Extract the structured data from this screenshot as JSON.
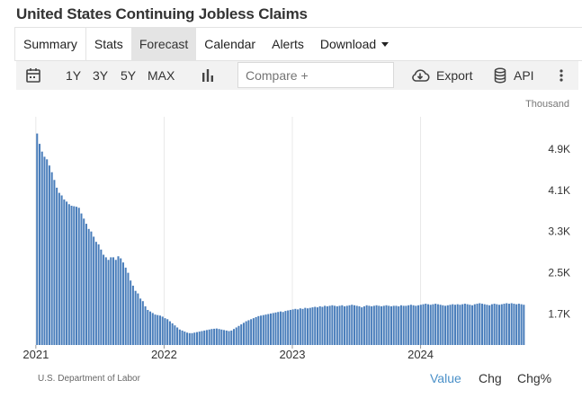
{
  "page": {
    "title": "United States Continuing Jobless Claims"
  },
  "tabs": [
    {
      "label": "Summary"
    },
    {
      "label": "Stats"
    },
    {
      "label": "Forecast"
    },
    {
      "label": "Calendar"
    },
    {
      "label": "Alerts"
    },
    {
      "label": "Download"
    }
  ],
  "toolbar": {
    "ranges": [
      "1Y",
      "3Y",
      "5Y",
      "MAX"
    ],
    "compare_placeholder": "Compare +",
    "export_label": "Export",
    "api_label": "API",
    "icons": [
      "calendar-icon",
      "bar-chart-icon",
      "cloud-download-icon",
      "database-icon",
      "more-vertical-icon"
    ]
  },
  "colors": {
    "bar": "#4a7ebb",
    "accent": "#4a90c8",
    "grid": "#e8e8e8"
  },
  "chart_data": {
    "type": "bar",
    "unit_label": "Thousand",
    "y_axis": "right",
    "ylim": [
      1100,
      5350
    ],
    "yticks": [
      1700,
      2500,
      3300,
      4100,
      4900
    ],
    "ytick_labels": [
      "1.7K",
      "2.5K",
      "3.3K",
      "4.1K",
      "4.9K"
    ],
    "xlim": [
      2020.98,
      2024.95
    ],
    "xticks": [
      2021,
      2022,
      2023,
      2024
    ],
    "xtick_labels": [
      "2021",
      "2022",
      "2023",
      "2024"
    ],
    "grid": "vertical",
    "start": "2021-01-02",
    "interval": "weekly",
    "values": [
      5200,
      5000,
      4850,
      4750,
      4700,
      4580,
      4450,
      4300,
      4150,
      4050,
      4000,
      3920,
      3880,
      3830,
      3800,
      3790,
      3780,
      3760,
      3650,
      3550,
      3450,
      3350,
      3300,
      3200,
      3100,
      3050,
      2950,
      2850,
      2800,
      2750,
      2800,
      2800,
      2750,
      2820,
      2780,
      2700,
      2600,
      2500,
      2350,
      2250,
      2150,
      2100,
      2000,
      1950,
      1850,
      1780,
      1750,
      1720,
      1690,
      1680,
      1670,
      1650,
      1620,
      1600,
      1560,
      1520,
      1480,
      1440,
      1400,
      1380,
      1360,
      1340,
      1330,
      1330,
      1340,
      1350,
      1360,
      1370,
      1380,
      1390,
      1400,
      1410,
      1415,
      1420,
      1410,
      1400,
      1390,
      1380,
      1370,
      1380,
      1410,
      1440,
      1470,
      1500,
      1530,
      1560,
      1580,
      1600,
      1620,
      1640,
      1660,
      1670,
      1680,
      1690,
      1700,
      1710,
      1720,
      1730,
      1740,
      1750,
      1740,
      1760,
      1770,
      1780,
      1790,
      1800,
      1790,
      1810,
      1800,
      1820,
      1810,
      1820,
      1830,
      1840,
      1830,
      1850,
      1840,
      1860,
      1850,
      1860,
      1870,
      1860,
      1850,
      1860,
      1870,
      1850,
      1860,
      1870,
      1880,
      1870,
      1860,
      1850,
      1830,
      1850,
      1870,
      1860,
      1850,
      1860,
      1870,
      1860,
      1850,
      1860,
      1870,
      1860,
      1850,
      1860,
      1860,
      1850,
      1870,
      1860,
      1860,
      1870,
      1880,
      1870,
      1860,
      1870,
      1880,
      1890,
      1900,
      1890,
      1880,
      1890,
      1900,
      1890,
      1880,
      1870,
      1860,
      1870,
      1880,
      1890,
      1880,
      1890,
      1880,
      1890,
      1900,
      1890,
      1880,
      1870,
      1890,
      1900,
      1910,
      1900,
      1890,
      1880,
      1870,
      1890,
      1900,
      1890,
      1880,
      1890,
      1900,
      1910,
      1900,
      1910,
      1900,
      1890,
      1900,
      1890,
      1880
    ]
  },
  "footer": {
    "source": "U.S. Department of Labor",
    "modes": [
      {
        "label": "Value"
      },
      {
        "label": "Chg"
      },
      {
        "label": "Chg%"
      }
    ]
  }
}
